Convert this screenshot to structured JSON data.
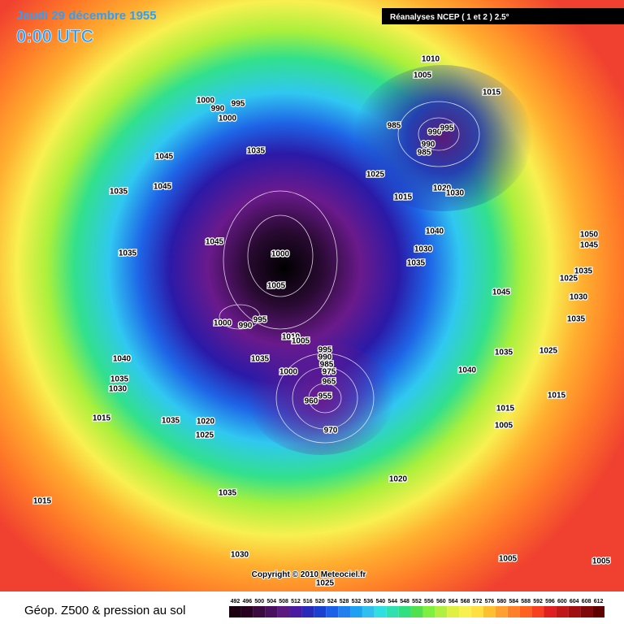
{
  "header": {
    "date": "Jeudi 29 décembre 1955",
    "time": "0:00 UTC",
    "source": "Réanalyses NCEP ( 1 et 2 ) 2.5°"
  },
  "copyright": "Copyright © 2010 Meteociel.fr",
  "footer": {
    "title": "Géop. Z500 & pression au sol",
    "scale": [
      492,
      496,
      500,
      504,
      508,
      512,
      516,
      520,
      524,
      528,
      532,
      536,
      540,
      544,
      548,
      552,
      556,
      560,
      564,
      568,
      572,
      576,
      580,
      584,
      588,
      592,
      596,
      600,
      604,
      608,
      612
    ]
  },
  "pressure_labels": [
    1010,
    1005,
    1015,
    1000,
    990,
    995,
    1000,
    985,
    990,
    995,
    985,
    990,
    1035,
    1045,
    1025,
    1020,
    1030,
    1035,
    1045,
    1015,
    1045,
    1040,
    1030,
    1035,
    1000,
    1005,
    1035,
    1050,
    1045,
    1035,
    1025,
    1045,
    1030,
    1035,
    1000,
    990,
    995,
    1010,
    1005,
    995,
    990,
    985,
    975,
    965,
    1000,
    1035,
    1040,
    1035,
    1030,
    1035,
    1040,
    1025,
    1015,
    1015,
    1005,
    960,
    955,
    970,
    1015,
    1035,
    1020,
    1025,
    1020,
    1035,
    1015,
    1030,
    1005,
    1005,
    1025
  ]
}
